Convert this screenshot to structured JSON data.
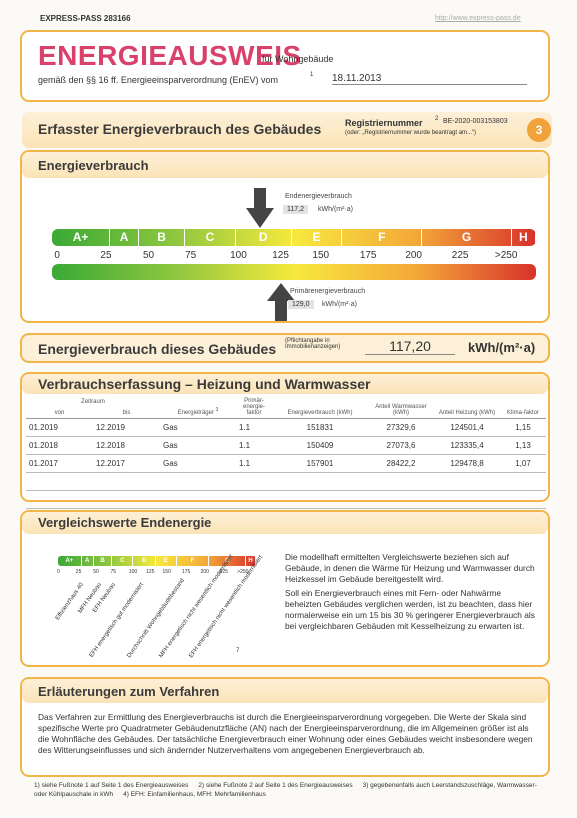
{
  "header": {
    "id": "EXPRESS-PASS 283166",
    "url": "http://www.express-pass.de"
  },
  "title": {
    "main": "ENERGIEAUSWEIS",
    "suffix": "für Wohngebäude",
    "legal": "gemäß den §§ 16 ff. Energieeinsparverordnung (EnEV) vom",
    "legal_note": "1",
    "date": "18.11.2013"
  },
  "section": {
    "title": "Erfasster Energieverbrauch des Gebäudes",
    "reg_label": "Registriernummer",
    "reg_note": "2",
    "reg_number": "BE-2020-003153803",
    "reg_hint": "(oder: „Registriernummer wurde beantragt am...“)",
    "page": "3"
  },
  "energy": {
    "title": "Energieverbrauch",
    "end_label": "Endenergieverbrauch",
    "end_value": "117,2",
    "unit": "kWh/(m²·a)",
    "primary_label": "Primärenergieverbrauch",
    "primary_value": "129,0",
    "classes": [
      "A+",
      "A",
      "B",
      "C",
      "D",
      "E",
      "F",
      "G",
      "H"
    ],
    "ticks": [
      "0",
      "25",
      "50",
      "75",
      "100",
      "125",
      "150",
      "175",
      "200",
      "225",
      ">250"
    ]
  },
  "building": {
    "label": "Energieverbrauch dieses Gebäudes",
    "note": "(Pflichtangabe in Immobilienanzeigen)",
    "value": "117,20",
    "unit": "kWh/(m²·a)"
  },
  "consumption": {
    "title": "Verbrauchserfassung – Heizung und Warmwasser",
    "headers": {
      "period": "Zeitraum",
      "from": "von",
      "to": "bis",
      "carrier": "Energieträger",
      "carrier_note": "3",
      "factor": "Primär-energie-faktor",
      "energy": "Energieverbrauch (kWh)",
      "water": "Anteil Warmwasser (kWh)",
      "heating": "Anteil Heizung (kWh)",
      "climate": "Klima-faktor"
    },
    "rows": [
      [
        "01.2019",
        "12.2019",
        "Gas",
        "1.1",
        "151831",
        "27329,6",
        "124501,4",
        "1,15"
      ],
      [
        "01.2018",
        "12.2018",
        "Gas",
        "1.1",
        "150409",
        "27073,6",
        "123335,4",
        "1,13"
      ],
      [
        "01.2017",
        "12.2017",
        "Gas",
        "1.1",
        "157901",
        "28422,2",
        "129478,8",
        "1,07"
      ]
    ]
  },
  "comparison": {
    "title": "Vergleichswerte Endenergie",
    "labels": [
      "Effizienzhaus 40",
      "MFH Neubau",
      "EFH Neubau",
      "EFH energetisch gut modernisiert",
      "Durchschnitt Wohngebäudebestand",
      "MFH energetisch nicht wesentlich modernisiert",
      "EFH energetisch nicht wesentlich modernisiert"
    ],
    "note": "7",
    "text1": "Die modellhaft ermittelten Vergleichswerte beziehen sich auf Gebäude, in denen die Wärme für Heizung und Warmwasser durch Heizkessel im Gebäude bereitgestellt wird.",
    "text2": "Soll ein Energieverbrauch eines mit Fern- oder Nahwärme beheizten Gebäudes verglichen werden, ist zu beachten, dass hier normalerweise ein um 15 bis 30 % geringerer Energieverbrauch als bei vergleichbaren Gebäuden mit Kesselheizung zu erwarten ist."
  },
  "explanation": {
    "title": "Erläuterungen zum Verfahren",
    "text": "Das Verfahren zur Ermittlung des Energieverbrauchs ist durch die Energieeinsparverordnung vorgegeben. Die Werte der Skala sind spezifische Werte pro Quadratmeter Gebäudenutzfläche (AN) nach der Energieeinsparverordnung, die im Allgemeinen größer ist als die Wohnfläche des Gebäudes. Der tatsächliche Energieverbrauch einer Wohnung oder eines Gebäudes weicht insbesondere wegen des Witterungseinflusses und sich ändernder Nutzerverhaltens vom angegebenen Energieverbrauch ab."
  },
  "footnotes": [
    "1) siehe Fußnote 1 auf Seite 1 des Energieausweises",
    "2) siehe Fußnote 2 auf Seite 1 des Energieausweises",
    "3) gegebenenfalls auch Leerstandszuschläge, Warmwasser- oder Kühlpauschale in kWh",
    "4) EFH: Einfamilienhaus, MFH: Mehrfamilienhaus"
  ]
}
